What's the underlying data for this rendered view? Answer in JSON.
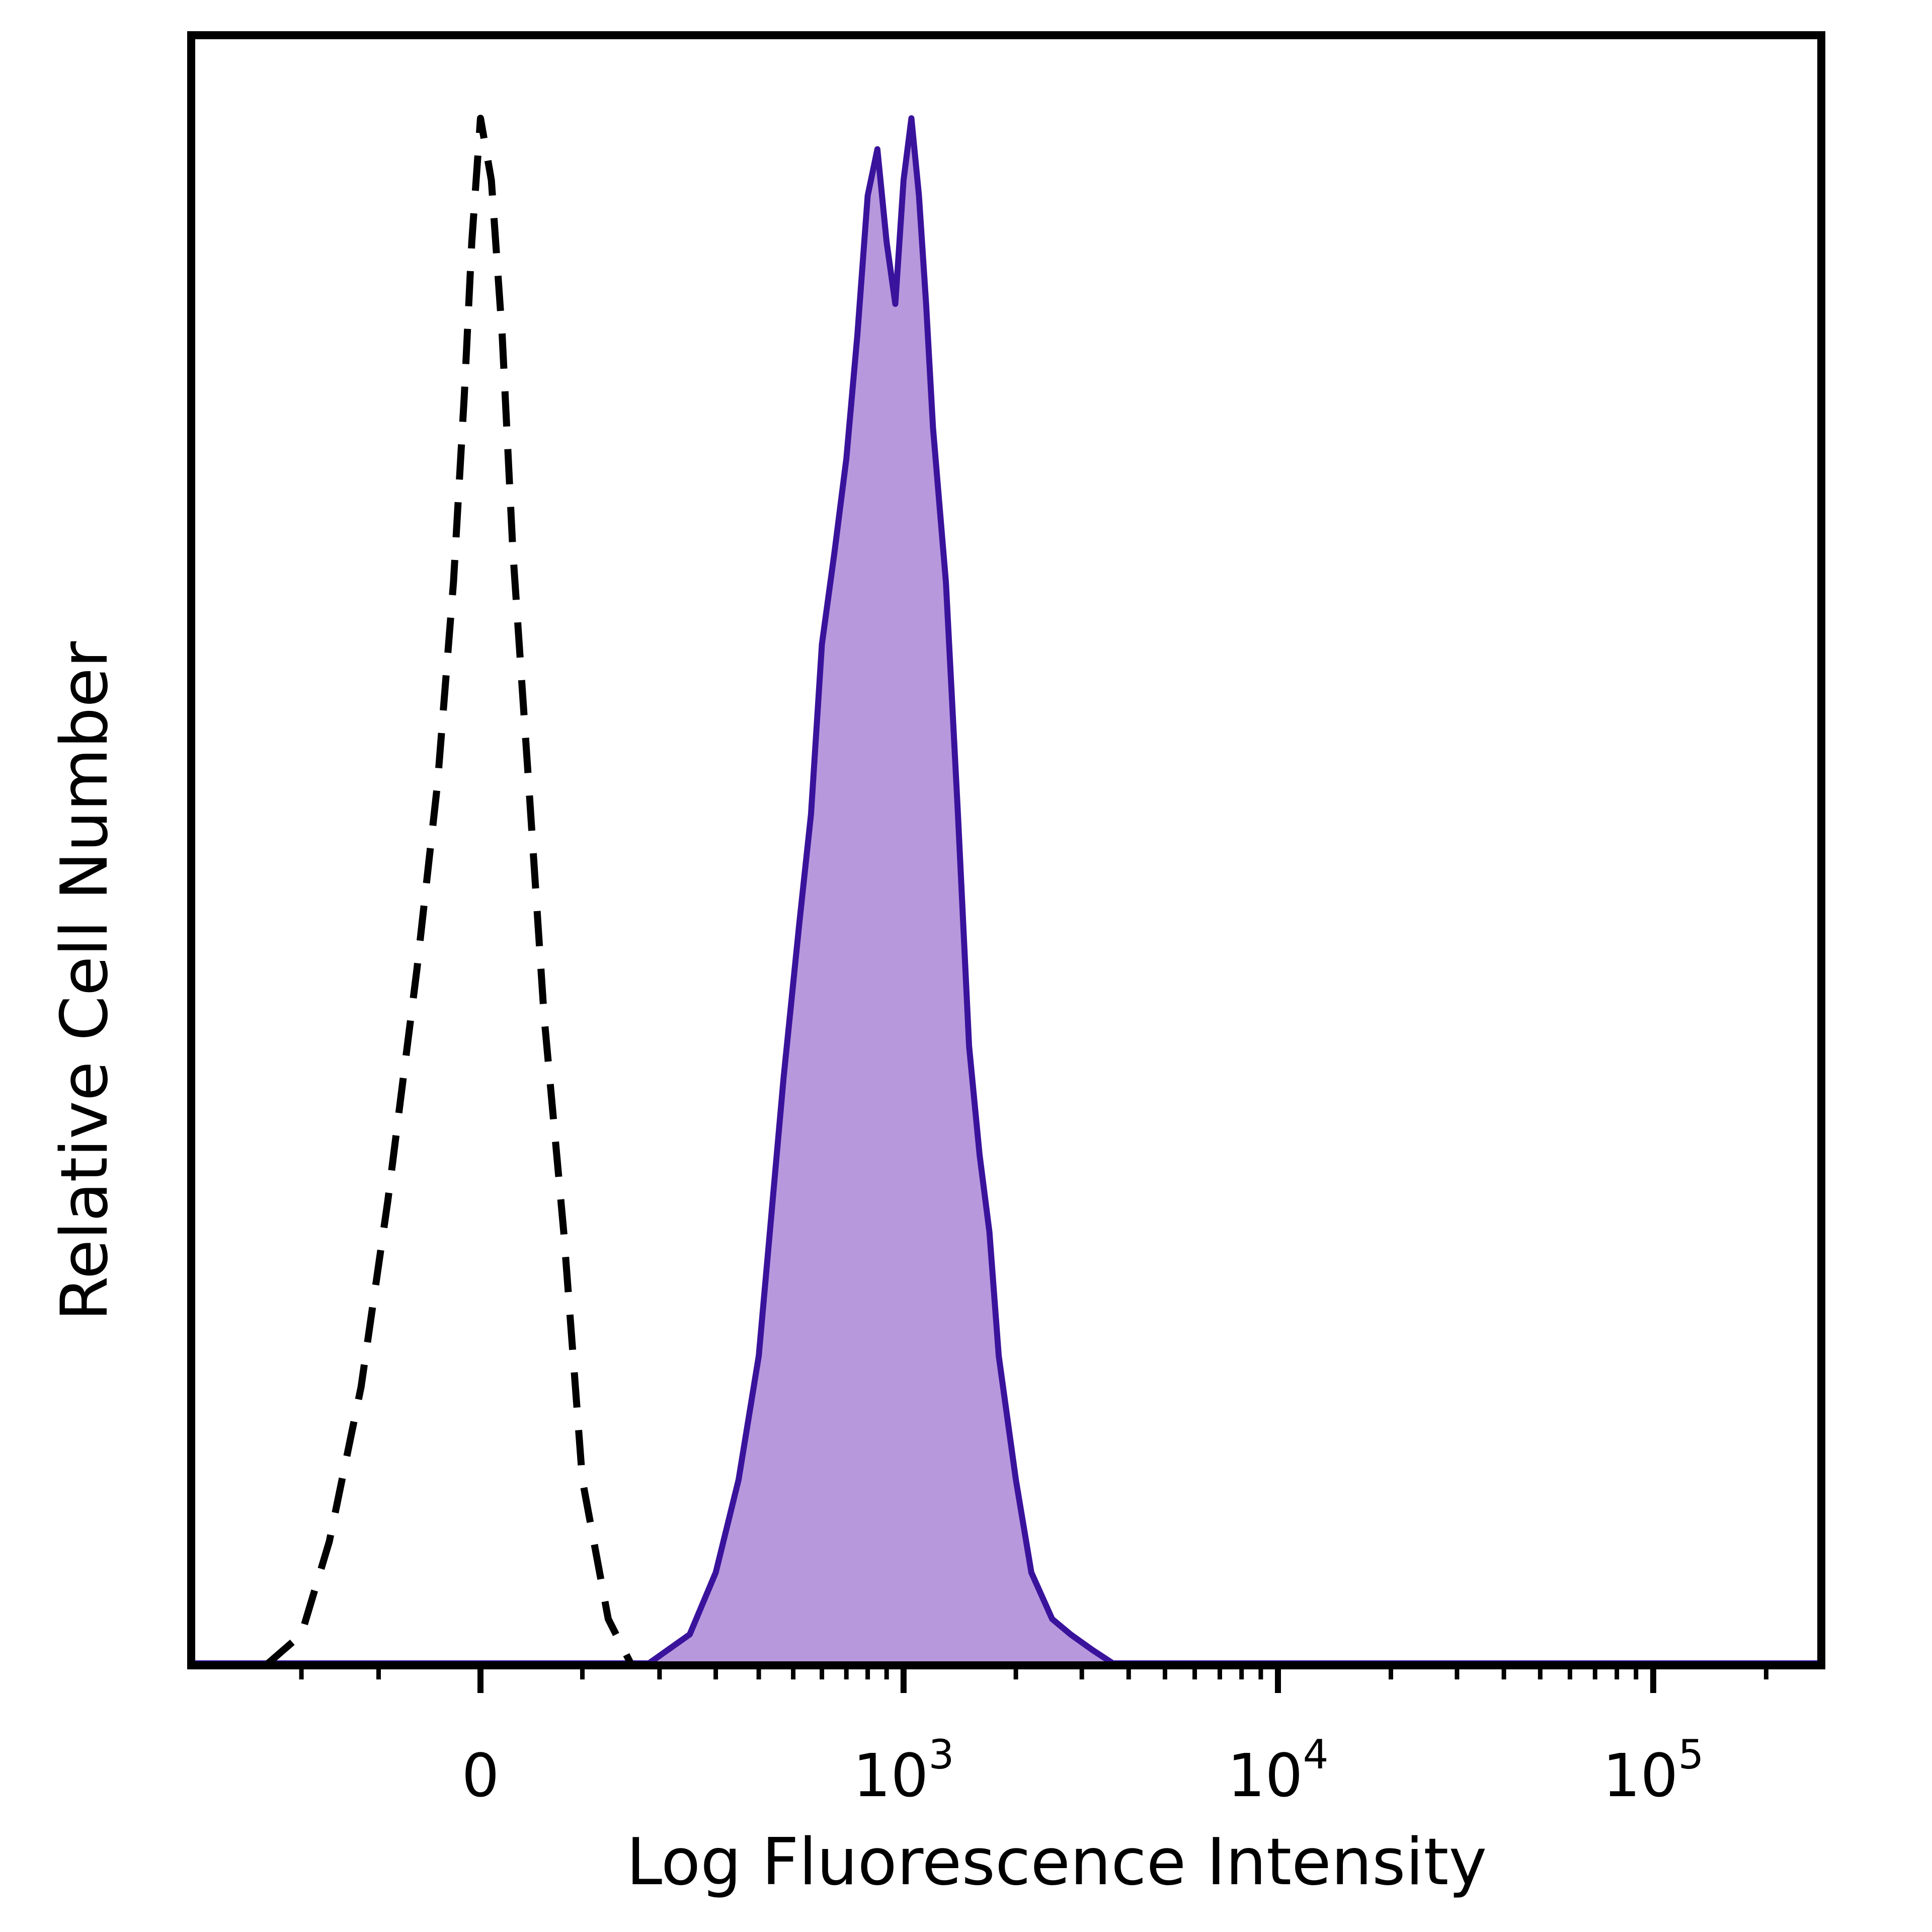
{
  "chart_data": {
    "type": "area",
    "title": "",
    "xlabel": "Log Fluorescence Intensity",
    "ylabel": "Relative Cell Number",
    "x_scale": "biexponential (linear near 0, log above)",
    "xlim": [
      -300,
      200000
    ],
    "ylim": [
      0,
      100
    ],
    "grid": false,
    "legend": "none",
    "x_ticks": [
      {
        "value": 0,
        "base": "0",
        "exp": ""
      },
      {
        "value": 1000,
        "base": "10",
        "exp": "3"
      },
      {
        "value": 10000,
        "base": "10",
        "exp": "4"
      },
      {
        "value": 100000,
        "base": "10",
        "exp": "5"
      }
    ],
    "series": [
      {
        "style": "dashed-outline",
        "color": "#000000",
        "x": [
          -260,
          -200,
          -160,
          -120,
          -90,
          -60,
          -40,
          -25,
          -15,
          -8,
          0,
          10,
          20,
          30,
          45,
          60,
          80,
          100,
          130,
          160
        ],
        "y": [
          0,
          2,
          8,
          18,
          30,
          45,
          57,
          70,
          82,
          92,
          100,
          96,
          86,
          72,
          57,
          42,
          28,
          12,
          3,
          0
        ]
      },
      {
        "style": "filled",
        "color": "#3a139c",
        "fill": "#b798dd",
        "x": [
          180,
          250,
          300,
          350,
          400,
          430,
          470,
          520,
          560,
          600,
          650,
          700,
          750,
          800,
          850,
          900,
          950,
          1000,
          1050,
          1100,
          1150,
          1200,
          1300,
          1400,
          1500,
          1600,
          1700,
          1800,
          2000,
          2200,
          2500,
          2800,
          3200,
          3700
        ],
        "y": [
          0,
          2,
          6,
          12,
          20,
          28,
          38,
          48,
          55,
          66,
          72,
          78,
          86,
          95,
          98,
          92,
          88,
          96,
          100,
          95,
          88,
          80,
          70,
          55,
          40,
          33,
          28,
          20,
          12,
          6,
          3,
          2,
          1,
          0
        ]
      }
    ]
  },
  "colors": {
    "frame": "#000000",
    "positive_line": "#3a139c",
    "positive_fill": "#b798dd",
    "control_line": "#000000"
  }
}
